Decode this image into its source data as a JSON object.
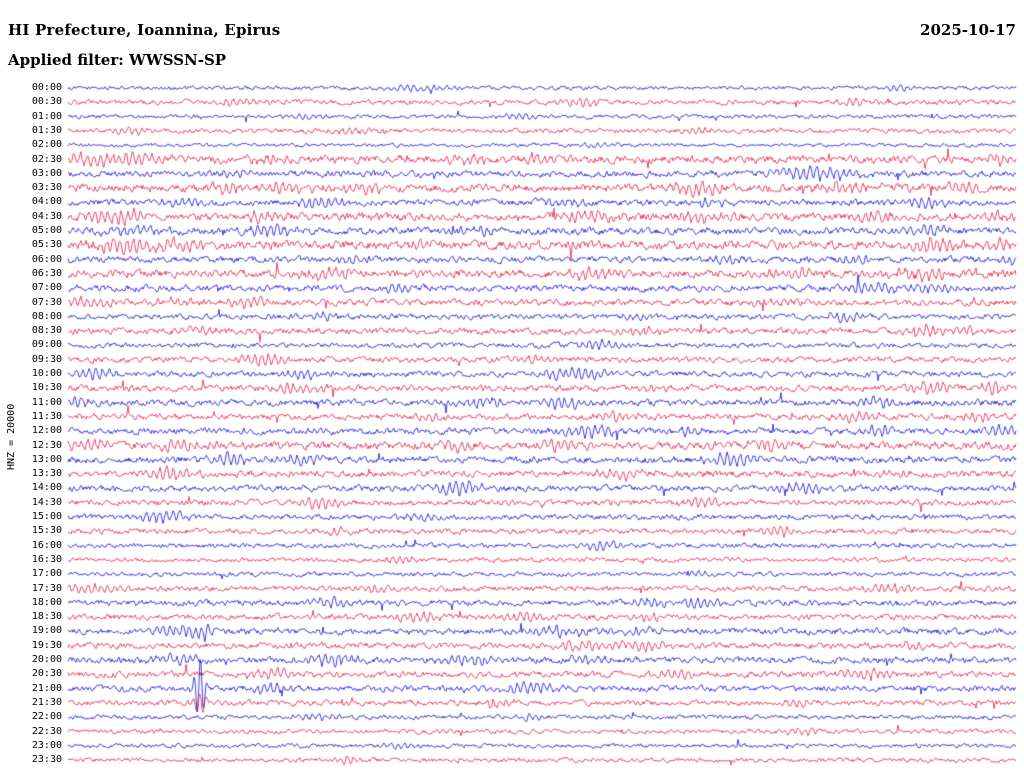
{
  "header": {
    "title": "HI Prefecture, Ioannina, Epirus",
    "date": "2025-10-17",
    "filter": "Applied filter: WWSSN-SP"
  },
  "axis": {
    "channel_label": "HNZ = 20000"
  },
  "colors": {
    "blue": "#0000cc",
    "red": "#dc143c",
    "text": "#000000",
    "background": "#ffffff"
  },
  "chart_data": {
    "type": "line",
    "subtype": "seismogram-helicorder",
    "title": "HI Prefecture, Ioannina, Epirus",
    "date": "2025-10-17",
    "filter": "WWSSN-SP",
    "channel": "HNZ",
    "gain": 20000,
    "line_duration_minutes": 30,
    "legend": "alternating blue/red traces, one row per 30 minutes, 00:00-23:30",
    "note": "noise = background microseism amplitude (qualitative px), events = [x-position, amplitude, width] bursts read from the record",
    "rows": [
      {
        "t": "00:00",
        "color": "blue",
        "noise": 1.1,
        "events": [
          [
            420,
            2.5,
            30
          ],
          [
            900,
            2,
            25
          ]
        ]
      },
      {
        "t": "00:30",
        "color": "red",
        "noise": 1.4,
        "events": [
          [
            240,
            3,
            30
          ],
          [
            580,
            4,
            20
          ],
          [
            850,
            2.5,
            25
          ]
        ]
      },
      {
        "t": "01:00",
        "color": "blue",
        "noise": 1.1,
        "events": [
          [
            300,
            2,
            25
          ],
          [
            520,
            2.5,
            20
          ]
        ]
      },
      {
        "t": "01:30",
        "color": "red",
        "noise": 1.3,
        "events": [
          [
            130,
            2.5,
            25
          ],
          [
            350,
            3,
            25
          ],
          [
            700,
            2,
            20
          ]
        ]
      },
      {
        "t": "02:00",
        "color": "blue",
        "noise": 1.0,
        "events": [
          [
            600,
            2,
            20
          ]
        ]
      },
      {
        "t": "02:30",
        "color": "red",
        "noise": 2.2,
        "events": [
          [
            90,
            6,
            25
          ],
          [
            135,
            5,
            30
          ],
          [
            270,
            3,
            25
          ],
          [
            470,
            3.5,
            20
          ],
          [
            540,
            3,
            20
          ],
          [
            1000,
            5,
            15
          ]
        ]
      },
      {
        "t": "03:00",
        "color": "blue",
        "noise": 1.8,
        "events": [
          [
            240,
            3,
            20
          ],
          [
            800,
            5,
            30
          ],
          [
            840,
            4,
            25
          ]
        ]
      },
      {
        "t": "03:30",
        "color": "red",
        "noise": 2.2,
        "events": [
          [
            230,
            4,
            30
          ],
          [
            280,
            4.5,
            35
          ],
          [
            360,
            3.5,
            25
          ],
          [
            700,
            5,
            25
          ],
          [
            840,
            4.5,
            30
          ],
          [
            960,
            3,
            20
          ]
        ]
      },
      {
        "t": "04:00",
        "color": "blue",
        "noise": 1.8,
        "events": [
          [
            180,
            3.5,
            25
          ],
          [
            320,
            5,
            25
          ],
          [
            560,
            3.5,
            20
          ],
          [
            710,
            3,
            20
          ],
          [
            920,
            4,
            30
          ]
        ]
      },
      {
        "t": "04:30",
        "color": "red",
        "noise": 2.2,
        "events": [
          [
            120,
            6,
            30
          ],
          [
            260,
            3.5,
            25
          ],
          [
            590,
            5,
            30
          ],
          [
            700,
            4.5,
            25
          ],
          [
            870,
            3.5,
            25
          ],
          [
            990,
            4,
            20
          ]
        ]
      },
      {
        "t": "05:00",
        "color": "blue",
        "noise": 2.0,
        "events": [
          [
            130,
            4,
            25
          ],
          [
            270,
            5,
            25
          ],
          [
            480,
            3,
            20
          ],
          [
            930,
            4,
            25
          ]
        ]
      },
      {
        "t": "05:30",
        "color": "red",
        "noise": 2.4,
        "events": [
          [
            120,
            5.5,
            30
          ],
          [
            180,
            4.5,
            25
          ],
          [
            420,
            3,
            20
          ],
          [
            930,
            5,
            30
          ],
          [
            1000,
            4,
            15
          ]
        ]
      },
      {
        "t": "06:00",
        "color": "blue",
        "noise": 1.8,
        "events": [
          [
            350,
            3,
            20
          ],
          [
            730,
            3.5,
            20
          ],
          [
            860,
            3,
            20
          ],
          [
            1010,
            3,
            10
          ]
        ]
      },
      {
        "t": "06:30",
        "color": "red",
        "noise": 2.2,
        "events": [
          [
            330,
            4.5,
            25
          ],
          [
            590,
            5,
            25
          ],
          [
            790,
            4,
            25
          ],
          [
            920,
            5,
            30
          ],
          [
            970,
            4,
            20
          ]
        ]
      },
      {
        "t": "07:00",
        "color": "blue",
        "noise": 1.8,
        "events": [
          [
            400,
            3,
            20
          ],
          [
            880,
            5,
            25
          ],
          [
            940,
            4.5,
            20
          ]
        ]
      },
      {
        "t": "07:30",
        "color": "red",
        "noise": 1.8,
        "events": [
          [
            90,
            4,
            25
          ],
          [
            180,
            3.5,
            20
          ],
          [
            250,
            4,
            25
          ],
          [
            760,
            3,
            20
          ]
        ]
      },
      {
        "t": "08:00",
        "color": "blue",
        "noise": 1.5,
        "events": [
          [
            320,
            3,
            20
          ],
          [
            640,
            3,
            20
          ],
          [
            840,
            3.5,
            20
          ]
        ]
      },
      {
        "t": "08:30",
        "color": "red",
        "noise": 1.8,
        "events": [
          [
            200,
            3,
            20
          ],
          [
            640,
            3,
            20
          ],
          [
            930,
            5.5,
            25
          ],
          [
            960,
            4,
            20
          ]
        ]
      },
      {
        "t": "09:00",
        "color": "blue",
        "noise": 1.4,
        "events": [
          [
            600,
            4.5,
            20
          ]
        ]
      },
      {
        "t": "09:30",
        "color": "red",
        "noise": 1.6,
        "events": [
          [
            260,
            5,
            25
          ],
          [
            540,
            3,
            20
          ]
        ]
      },
      {
        "t": "10:00",
        "color": "blue",
        "noise": 1.6,
        "events": [
          [
            95,
            5.5,
            20
          ],
          [
            300,
            3.5,
            20
          ],
          [
            565,
            4.5,
            25
          ],
          [
            590,
            4,
            20
          ]
        ]
      },
      {
        "t": "10:30",
        "color": "red",
        "noise": 1.8,
        "events": [
          [
            300,
            4,
            25
          ],
          [
            650,
            3,
            20
          ],
          [
            930,
            5,
            25
          ],
          [
            995,
            5.5,
            15
          ]
        ]
      },
      {
        "t": "11:00",
        "color": "blue",
        "noise": 1.8,
        "events": [
          [
            75,
            5,
            20
          ],
          [
            480,
            4,
            25
          ],
          [
            565,
            5,
            25
          ],
          [
            880,
            3.5,
            20
          ]
        ]
      },
      {
        "t": "11:30",
        "color": "red",
        "noise": 1.7,
        "events": [
          [
            430,
            3,
            20
          ],
          [
            620,
            4,
            25
          ],
          [
            860,
            4.5,
            25
          ],
          [
            980,
            4,
            20
          ]
        ]
      },
      {
        "t": "12:00",
        "color": "blue",
        "noise": 1.8,
        "events": [
          [
            590,
            5.5,
            25
          ],
          [
            690,
            3,
            20
          ],
          [
            880,
            4.5,
            20
          ],
          [
            1000,
            5,
            15
          ]
        ]
      },
      {
        "t": "12:30",
        "color": "red",
        "noise": 2.2,
        "events": [
          [
            90,
            4.5,
            25
          ],
          [
            180,
            4,
            25
          ],
          [
            450,
            4,
            25
          ],
          [
            560,
            4.5,
            25
          ],
          [
            770,
            4,
            25
          ]
        ]
      },
      {
        "t": "13:00",
        "color": "blue",
        "noise": 1.9,
        "events": [
          [
            230,
            5,
            25
          ],
          [
            300,
            4.5,
            25
          ],
          [
            730,
            5.5,
            30
          ]
        ]
      },
      {
        "t": "13:30",
        "color": "red",
        "noise": 1.8,
        "events": [
          [
            170,
            5,
            25
          ],
          [
            620,
            4,
            25
          ],
          [
            900,
            3,
            20
          ]
        ]
      },
      {
        "t": "14:00",
        "color": "blue",
        "noise": 1.7,
        "events": [
          [
            460,
            6,
            25
          ],
          [
            800,
            5,
            25
          ]
        ]
      },
      {
        "t": "14:30",
        "color": "red",
        "noise": 1.6,
        "events": [
          [
            320,
            5,
            25
          ],
          [
            700,
            3,
            20
          ]
        ]
      },
      {
        "t": "15:00",
        "color": "blue",
        "noise": 1.5,
        "events": [
          [
            165,
            6,
            25
          ],
          [
            420,
            3,
            20
          ]
        ]
      },
      {
        "t": "15:30",
        "color": "red",
        "noise": 1.5,
        "events": [
          [
            340,
            3,
            20
          ],
          [
            780,
            4.5,
            20
          ]
        ]
      },
      {
        "t": "16:00",
        "color": "blue",
        "noise": 1.3,
        "events": [
          [
            600,
            4,
            20
          ]
        ]
      },
      {
        "t": "16:30",
        "color": "red",
        "noise": 1.2,
        "events": [
          [
            400,
            2.5,
            20
          ]
        ]
      },
      {
        "t": "17:00",
        "color": "blue",
        "noise": 1.2,
        "events": [
          [
            700,
            2.5,
            20
          ]
        ]
      },
      {
        "t": "17:30",
        "color": "red",
        "noise": 1.5,
        "events": [
          [
            90,
            4,
            25
          ],
          [
            370,
            3,
            20
          ],
          [
            890,
            5,
            25
          ]
        ]
      },
      {
        "t": "18:00",
        "color": "blue",
        "noise": 1.6,
        "events": [
          [
            330,
            4.5,
            20
          ],
          [
            650,
            3.5,
            20
          ],
          [
            700,
            4,
            20
          ]
        ]
      },
      {
        "t": "18:30",
        "color": "red",
        "noise": 1.6,
        "events": [
          [
            420,
            4.5,
            25
          ],
          [
            530,
            4,
            25
          ],
          [
            650,
            3,
            20
          ]
        ]
      },
      {
        "t": "19:00",
        "color": "blue",
        "noise": 1.8,
        "events": [
          [
            180,
            5,
            25
          ],
          [
            205,
            8,
            8
          ],
          [
            560,
            4.5,
            25
          ],
          [
            640,
            3.5,
            20
          ]
        ]
      },
      {
        "t": "19:30",
        "color": "red",
        "noise": 1.7,
        "events": [
          [
            580,
            4,
            25
          ],
          [
            640,
            4.5,
            25
          ],
          [
            910,
            3,
            20
          ]
        ]
      },
      {
        "t": "20:00",
        "color": "blue",
        "noise": 1.8,
        "events": [
          [
            175,
            4,
            25
          ],
          [
            330,
            5,
            25
          ],
          [
            470,
            4,
            25
          ],
          [
            590,
            3.5,
            20
          ]
        ]
      },
      {
        "t": "20:30",
        "color": "red",
        "noise": 1.7,
        "events": [
          [
            270,
            4.5,
            25
          ],
          [
            680,
            3.5,
            20
          ],
          [
            860,
            4,
            25
          ]
        ]
      },
      {
        "t": "21:00",
        "color": "blue",
        "noise": 1.7,
        "events": [
          [
            200,
            30,
            6
          ],
          [
            270,
            4,
            20
          ],
          [
            530,
            5,
            25
          ]
        ]
      },
      {
        "t": "21:30",
        "color": "red",
        "noise": 1.5,
        "events": [
          [
            200,
            10,
            7
          ],
          [
            500,
            4,
            20
          ],
          [
            800,
            3,
            20
          ]
        ]
      },
      {
        "t": "22:00",
        "color": "blue",
        "noise": 1.2,
        "events": [
          [
            320,
            2.5,
            20
          ],
          [
            530,
            3,
            15
          ]
        ]
      },
      {
        "t": "22:30",
        "color": "red",
        "noise": 1.2,
        "events": [
          [
            800,
            3,
            20
          ]
        ]
      },
      {
        "t": "23:00",
        "color": "blue",
        "noise": 1.1,
        "events": [
          [
            400,
            2,
            15
          ]
        ]
      },
      {
        "t": "23:30",
        "color": "red",
        "noise": 1.2,
        "events": [
          [
            350,
            2.5,
            15
          ]
        ]
      }
    ]
  }
}
